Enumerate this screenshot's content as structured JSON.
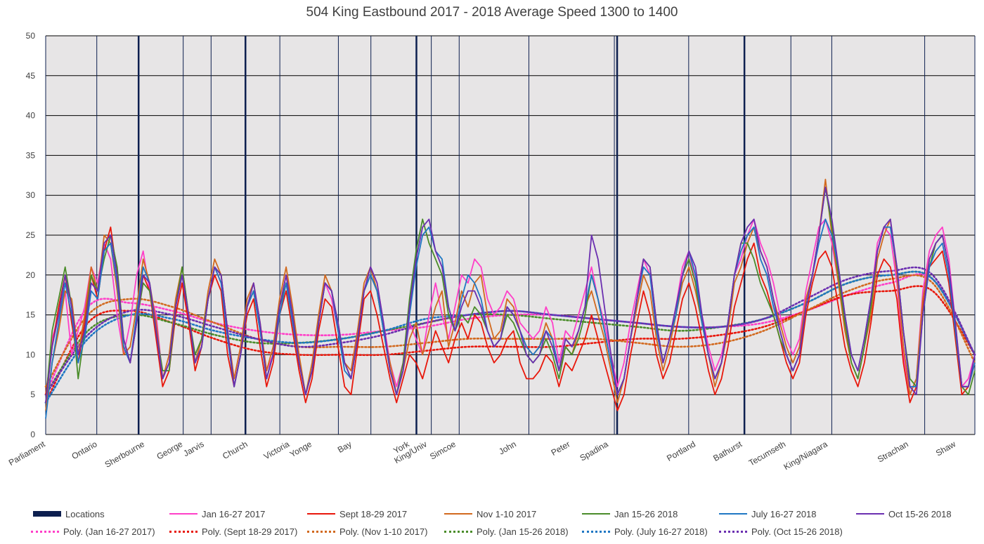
{
  "chart_data": {
    "type": "line",
    "title": "504 King Eastbound 2017 - 2018 Average Speed 1300 to 1400",
    "xlabel": "",
    "ylabel": "",
    "ylim": [
      0,
      50
    ],
    "yticks": [
      0,
      5,
      10,
      15,
      20,
      25,
      30,
      35,
      40,
      45,
      50
    ],
    "grid": true,
    "legend_position": "bottom",
    "location_labels": [
      "Parliament",
      "Ontario",
      "Sherbourne",
      "George",
      "Jarvis",
      "Church",
      "Victoria",
      "Yonge",
      "Bay",
      "York",
      "King/Univ",
      "Simcoe",
      "John",
      "Peter",
      "Spadina",
      "Portland",
      "Bathurst",
      "Tecumseth",
      "King/Niagara",
      "Strachan",
      "Shaw"
    ],
    "locations_series": {
      "name": "Locations",
      "color": "#0d1f4f",
      "major_positions": [
        0.1,
        0.215,
        0.399,
        0.615,
        0.752
      ],
      "minor_positions": [
        0.055,
        0.148,
        0.178,
        0.252,
        0.315,
        0.35,
        0.415,
        0.445,
        0.52,
        0.612,
        0.692,
        0.802,
        0.846,
        0.946
      ]
    },
    "series": [
      {
        "name": "Jan 16-27 2017",
        "color": "#ff3fc8",
        "values": [
          4,
          12,
          15,
          18,
          10,
          13,
          16,
          21,
          19,
          24,
          22,
          15,
          10,
          14,
          20,
          23,
          18,
          15,
          7,
          9,
          16,
          20,
          14,
          9,
          12,
          17,
          21,
          19,
          12,
          7,
          11,
          16,
          18,
          13,
          8,
          10,
          16,
          20,
          15,
          9,
          5,
          8,
          14,
          19,
          17,
          13,
          9,
          8,
          13,
          18,
          21,
          19,
          14,
          9,
          6,
          9,
          14,
          12,
          10,
          15,
          19,
          15,
          12,
          16,
          20,
          19,
          22,
          21,
          17,
          15,
          16,
          18,
          17,
          14,
          13,
          12,
          13,
          16,
          14,
          9,
          13,
          12,
          15,
          18,
          21,
          17,
          14,
          10,
          6,
          9,
          14,
          18,
          22,
          20,
          13,
          9,
          12,
          16,
          21,
          23,
          19,
          15,
          11,
          8,
          10,
          14,
          20,
          22,
          25,
          27,
          24,
          22,
          19,
          15,
          12,
          10,
          12,
          18,
          22,
          26,
          27,
          24,
          19,
          14,
          10,
          8,
          12,
          17,
          24,
          26,
          25,
          19,
          10,
          5,
          7,
          18,
          23,
          25,
          26,
          22,
          14,
          6,
          7,
          10
        ]
      },
      {
        "name": "Sept 18-29 2017",
        "color": "#e8170b",
        "values": [
          5,
          11,
          16,
          20,
          14,
          9,
          14,
          20,
          17,
          23,
          26,
          20,
          11,
          9,
          14,
          20,
          18,
          12,
          6,
          8,
          15,
          19,
          14,
          8,
          11,
          17,
          20,
          18,
          10,
          6,
          10,
          15,
          17,
          11,
          6,
          9,
          15,
          18,
          13,
          8,
          4,
          7,
          13,
          17,
          16,
          11,
          6,
          5,
          11,
          17,
          18,
          15,
          11,
          7,
          4,
          7,
          10,
          9,
          7,
          10,
          13,
          11,
          9,
          12,
          14,
          12,
          15,
          14,
          11,
          9,
          10,
          12,
          13,
          9,
          7,
          7,
          8,
          10,
          9,
          6,
          9,
          8,
          10,
          12,
          15,
          12,
          9,
          6,
          3,
          5,
          10,
          14,
          18,
          15,
          10,
          7,
          9,
          13,
          17,
          19,
          16,
          12,
          8,
          5,
          7,
          11,
          16,
          19,
          22,
          24,
          20,
          18,
          15,
          12,
          9,
          7,
          9,
          15,
          19,
          22,
          23,
          21,
          16,
          11,
          8,
          6,
          9,
          14,
          20,
          22,
          21,
          17,
          9,
          4,
          6,
          16,
          21,
          22,
          23,
          19,
          12,
          5,
          6,
          9
        ]
      },
      {
        "name": "Nov 1-10 2017",
        "color": "#d2691e",
        "values": [
          3,
          9,
          13,
          18,
          17,
          10,
          15,
          21,
          18,
          25,
          24,
          18,
          10,
          11,
          16,
          22,
          19,
          14,
          7,
          10,
          17,
          21,
          15,
          9,
          12,
          18,
          22,
          20,
          13,
          7,
          11,
          17,
          19,
          14,
          8,
          11,
          17,
          21,
          16,
          10,
          5,
          9,
          15,
          20,
          18,
          14,
          9,
          8,
          13,
          19,
          21,
          18,
          13,
          9,
          5,
          8,
          12,
          14,
          10,
          13,
          16,
          18,
          11,
          14,
          18,
          16,
          19,
          20,
          15,
          12,
          13,
          17,
          16,
          13,
          11,
          10,
          11,
          14,
          12,
          8,
          11,
          10,
          13,
          16,
          18,
          15,
          12,
          8,
          4,
          7,
          12,
          16,
          20,
          18,
          12,
          8,
          11,
          15,
          19,
          21,
          18,
          14,
          10,
          6,
          9,
          13,
          19,
          21,
          24,
          26,
          23,
          21,
          17,
          14,
          11,
          9,
          11,
          17,
          20,
          25,
          32,
          25,
          19,
          13,
          9,
          7,
          11,
          15,
          22,
          25,
          27,
          20,
          11,
          5,
          7,
          17,
          22,
          24,
          25,
          21,
          13,
          6,
          6,
          9
        ]
      },
      {
        "name": "Jan 15-26 2018",
        "color": "#4a8c2a",
        "values": [
          4,
          13,
          17,
          21,
          16,
          7,
          13,
          20,
          18,
          22,
          25,
          21,
          12,
          9,
          14,
          19,
          18,
          13,
          8,
          8,
          16,
          21,
          15,
          10,
          12,
          17,
          21,
          20,
          13,
          6,
          10,
          16,
          18,
          13,
          7,
          10,
          16,
          19,
          15,
          9,
          5,
          8,
          14,
          19,
          18,
          13,
          9,
          7,
          12,
          18,
          20,
          18,
          13,
          8,
          5,
          9,
          17,
          23,
          27,
          24,
          22,
          20,
          15,
          13,
          15,
          14,
          16,
          15,
          13,
          11,
          12,
          15,
          14,
          12,
          10,
          9,
          10,
          12,
          10,
          7,
          11,
          10,
          12,
          15,
          20,
          17,
          13,
          9,
          5,
          7,
          12,
          17,
          22,
          21,
          14,
          9,
          12,
          15,
          20,
          22,
          19,
          14,
          10,
          7,
          9,
          14,
          20,
          24,
          24,
          22,
          19,
          17,
          15,
          12,
          10,
          8,
          10,
          16,
          20,
          25,
          31,
          26,
          20,
          14,
          9,
          7,
          11,
          16,
          23,
          26,
          26,
          21,
          13,
          7,
          6,
          15,
          21,
          24,
          25,
          21,
          13,
          6,
          5,
          8
        ]
      },
      {
        "name": "July 16-27 2018",
        "color": "#1f77c4",
        "values": [
          2,
          9,
          14,
          19,
          15,
          9,
          12,
          18,
          17,
          23,
          24,
          19,
          11,
          9,
          15,
          21,
          19,
          13,
          7,
          9,
          16,
          20,
          15,
          9,
          11,
          17,
          21,
          19,
          12,
          6,
          10,
          16,
          18,
          13,
          7,
          10,
          15,
          19,
          14,
          9,
          5,
          8,
          14,
          19,
          18,
          13,
          8,
          7,
          12,
          18,
          20,
          18,
          13,
          8,
          5,
          8,
          15,
          21,
          25,
          26,
          23,
          22,
          16,
          13,
          17,
          20,
          19,
          17,
          13,
          11,
          12,
          16,
          15,
          13,
          11,
          10,
          11,
          13,
          12,
          8,
          12,
          11,
          13,
          16,
          20,
          17,
          13,
          9,
          5,
          7,
          12,
          17,
          21,
          20,
          13,
          9,
          12,
          15,
          20,
          23,
          20,
          14,
          10,
          7,
          9,
          14,
          20,
          23,
          25,
          26,
          22,
          20,
          16,
          13,
          10,
          8,
          10,
          16,
          20,
          24,
          27,
          25,
          21,
          15,
          10,
          8,
          12,
          17,
          23,
          26,
          26,
          21,
          13,
          6,
          6,
          15,
          21,
          23,
          24,
          20,
          13,
          6,
          6,
          9
        ]
      },
      {
        "name": "Oct 15-26 2018",
        "color": "#6b2fb0",
        "values": [
          4,
          11,
          15,
          20,
          16,
          10,
          13,
          19,
          18,
          24,
          25,
          20,
          12,
          9,
          14,
          20,
          19,
          13,
          7,
          9,
          16,
          20,
          15,
          9,
          11,
          17,
          21,
          20,
          13,
          6,
          10,
          16,
          19,
          14,
          7,
          10,
          16,
          20,
          15,
          9,
          5,
          8,
          14,
          19,
          18,
          14,
          9,
          7,
          12,
          18,
          21,
          19,
          14,
          8,
          5,
          8,
          16,
          22,
          26,
          27,
          23,
          21,
          16,
          13,
          16,
          18,
          18,
          16,
          13,
          11,
          12,
          16,
          15,
          13,
          10,
          9,
          10,
          13,
          11,
          8,
          12,
          11,
          13,
          16,
          25,
          22,
          16,
          10,
          5,
          7,
          12,
          17,
          22,
          21,
          14,
          9,
          12,
          16,
          20,
          23,
          21,
          15,
          10,
          7,
          9,
          14,
          20,
          24,
          26,
          27,
          23,
          21,
          17,
          13,
          10,
          8,
          10,
          16,
          20,
          25,
          31,
          27,
          21,
          15,
          10,
          8,
          12,
          17,
          23,
          26,
          27,
          21,
          13,
          6,
          5,
          15,
          22,
          24,
          25,
          21,
          14,
          6,
          6,
          10
        ]
      }
    ],
    "trendlines": [
      {
        "name": "Poly. (Jan 16-27 2017)",
        "color": "#ff3fc8",
        "values": [
          5,
          16,
          16.5,
          15.5,
          14,
          13,
          12.5,
          12.5,
          13,
          13.5,
          14.5,
          15,
          15,
          14.5,
          14,
          13.5,
          13.5,
          14,
          15.5,
          17.5,
          19,
          19.5,
          10
        ]
      },
      {
        "name": "Poly. (Sept 18-29 2017)",
        "color": "#e8170b",
        "values": [
          4,
          14,
          15.5,
          14,
          12,
          10.5,
          10,
          10,
          10,
          10.5,
          11,
          11,
          11,
          11.5,
          12,
          12,
          12.5,
          13.5,
          15.5,
          17.5,
          18,
          18,
          10
        ]
      },
      {
        "name": "Poly. (Nov 1-10 2017)",
        "color": "#d2691e",
        "values": [
          6,
          15,
          17,
          16,
          14,
          12,
          11,
          11,
          11,
          11.5,
          12,
          12,
          12,
          12,
          11.5,
          11,
          11.5,
          13,
          15.5,
          18,
          19.5,
          19,
          9
        ]
      },
      {
        "name": "Poly. (Jan 15-26 2018)",
        "color": "#4a8c2a",
        "values": [
          5,
          13,
          15,
          14,
          12.5,
          11.5,
          11.5,
          12,
          13,
          14,
          15,
          15,
          14.5,
          14,
          13.5,
          13,
          13.5,
          14.5,
          16.5,
          19,
          20,
          19.5,
          10
        ]
      },
      {
        "name": "Poly. (July 16-27 2018)",
        "color": "#1f77c4",
        "values": [
          4,
          12,
          15,
          14.5,
          13,
          12,
          11.5,
          12,
          13,
          14.5,
          15,
          15.5,
          15,
          14.5,
          14,
          13.5,
          13.5,
          14.5,
          16.5,
          19,
          20,
          19.5,
          10
        ]
      },
      {
        "name": "Poly. (Oct 15-26 2018)",
        "color": "#6b2fb0",
        "values": [
          5,
          12.5,
          15.5,
          15,
          13.5,
          12,
          11,
          11.5,
          12.5,
          14,
          15,
          15.5,
          15,
          14.5,
          14,
          13.5,
          13.5,
          14.5,
          17,
          19.5,
          20.5,
          20,
          10
        ]
      }
    ]
  }
}
